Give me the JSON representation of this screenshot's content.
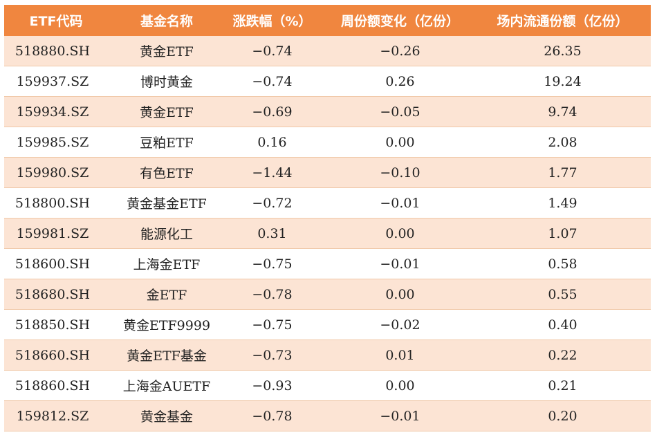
{
  "table": {
    "headers": [
      "ETF代码",
      "基金名称",
      "涨跌幅（%）",
      "周份额变化（亿份）",
      "场内流通份额（亿份）"
    ],
    "rows": [
      [
        "518880.SH",
        "黄金ETF",
        "−0.74",
        "−0.26",
        "26.35"
      ],
      [
        "159937.SZ",
        "博时黄金",
        "−0.74",
        "0.26",
        "19.24"
      ],
      [
        "159934.SZ",
        "黄金ETF",
        "−0.69",
        "−0.05",
        "9.74"
      ],
      [
        "159985.SZ",
        "豆粕ETF",
        "0.16",
        "0.00",
        "2.08"
      ],
      [
        "159980.SZ",
        "有色ETF",
        "−1.44",
        "−0.10",
        "1.77"
      ],
      [
        "518800.SH",
        "黄金基金ETF",
        "−0.72",
        "−0.01",
        "1.49"
      ],
      [
        "159981.SZ",
        "能源化工",
        "0.31",
        "0.00",
        "1.07"
      ],
      [
        "518600.SH",
        "上海金ETF",
        "−0.75",
        "−0.01",
        "0.58"
      ],
      [
        "518680.SH",
        "金ETF",
        "−0.78",
        "0.00",
        "0.55"
      ],
      [
        "518850.SH",
        "黄金ETF9999",
        "−0.75",
        "−0.02",
        "0.40"
      ],
      [
        "518660.SH",
        "黄金ETF基金",
        "−0.73",
        "0.01",
        "0.22"
      ],
      [
        "518860.SH",
        "上海金AUETF",
        "−0.93",
        "0.00",
        "0.21"
      ],
      [
        "159812.SZ",
        "黄金基金",
        "−0.78",
        "−0.01",
        "0.20"
      ]
    ]
  },
  "colors": {
    "header_bg": "#f0863f",
    "row_alt_bg": "#fce4d4",
    "row_bg": "#ffffff"
  }
}
